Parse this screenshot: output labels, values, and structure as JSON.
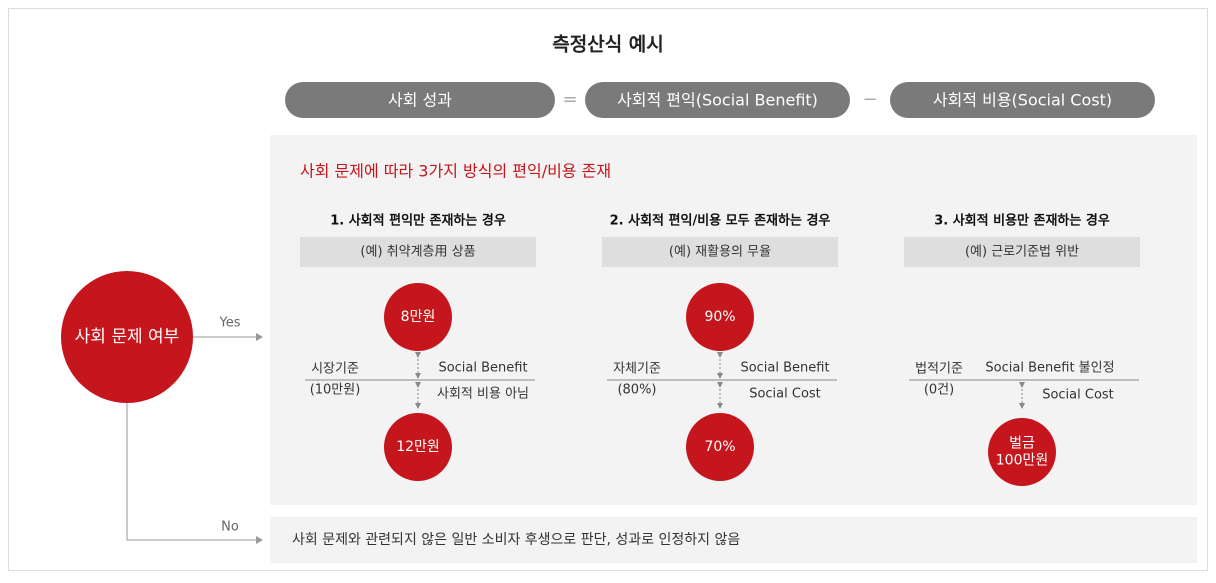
{
  "title": "측정산식 예시",
  "formula": {
    "terms": [
      "사회 성과",
      "사회적 편익(Social Benefit)",
      "사회적 비용(Social Cost)"
    ],
    "operators": [
      "=",
      "−"
    ]
  },
  "panel": {
    "heading": "사회 문제에 따라 3가지 방식의 편익/비용 존재",
    "cases": [
      {
        "heading": "1. 사회적 편익만 존재하는 경우",
        "example": "(예) 취약계층用 상품",
        "criterion": [
          "시장기준",
          "(10만원)"
        ],
        "upper_label": "Social Benefit",
        "lower_label": "사회적 비용 아님",
        "top_circle": [
          "8만원"
        ],
        "bottom_circle": [
          "12만원"
        ]
      },
      {
        "heading": "2. 사회적 편익/비용 모두 존재하는 경우",
        "example": "(예) 재활용의 무율",
        "criterion": [
          "자체기준",
          "(80%)"
        ],
        "upper_label": "Social Benefit",
        "lower_label": "Social Cost",
        "top_circle": [
          "90%"
        ],
        "bottom_circle": [
          "70%"
        ]
      },
      {
        "heading": "3. 사회적 비용만 존재하는 경우",
        "example": "(예) 근로기준법 위반",
        "criterion": [
          "법적기준",
          "(0건)"
        ],
        "upper_label": "Social Benefit 불인정",
        "lower_label": "Social Cost",
        "bottom_circle": [
          "벌금",
          "100만원"
        ]
      }
    ]
  },
  "decision": {
    "label": "사회 문제 여부",
    "yes": "Yes",
    "no": "No",
    "no_text": "사회 문제와 관련되지 않은 일반 소비자 후생으로 판단, 성과로 인정하지 않음"
  }
}
